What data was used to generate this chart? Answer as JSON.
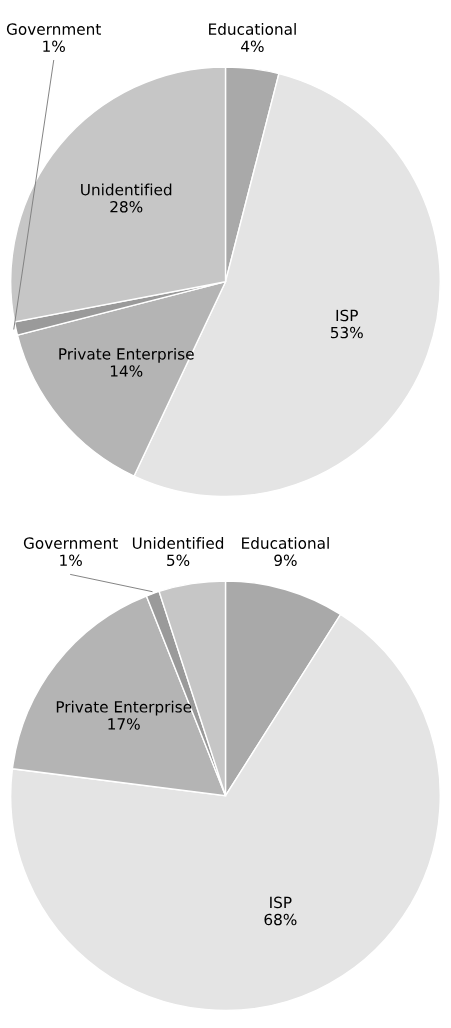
{
  "chart_data": [
    {
      "type": "pie",
      "categories": [
        "Educational",
        "ISP",
        "Private Enterprise",
        "Government",
        "Unidentified"
      ],
      "values": [
        4,
        53,
        14,
        1,
        28
      ],
      "colors": [
        "#a9a9a9",
        "#e4e4e4",
        "#b4b4b4",
        "#9a9a9a",
        "#c6c6c6"
      ],
      "value_labels": [
        "4%",
        "53%",
        "14%",
        "1%",
        "28%"
      ]
    },
    {
      "type": "pie",
      "categories": [
        "Educational",
        "ISP",
        "Private Enterprise",
        "Government",
        "Unidentified"
      ],
      "values": [
        9,
        68,
        17,
        1,
        5
      ],
      "colors": [
        "#a9a9a9",
        "#e4e4e4",
        "#b4b4b4",
        "#9a9a9a",
        "#c6c6c6"
      ],
      "value_labels": [
        "9%",
        "68%",
        "17%",
        "1%",
        "5%"
      ]
    }
  ]
}
